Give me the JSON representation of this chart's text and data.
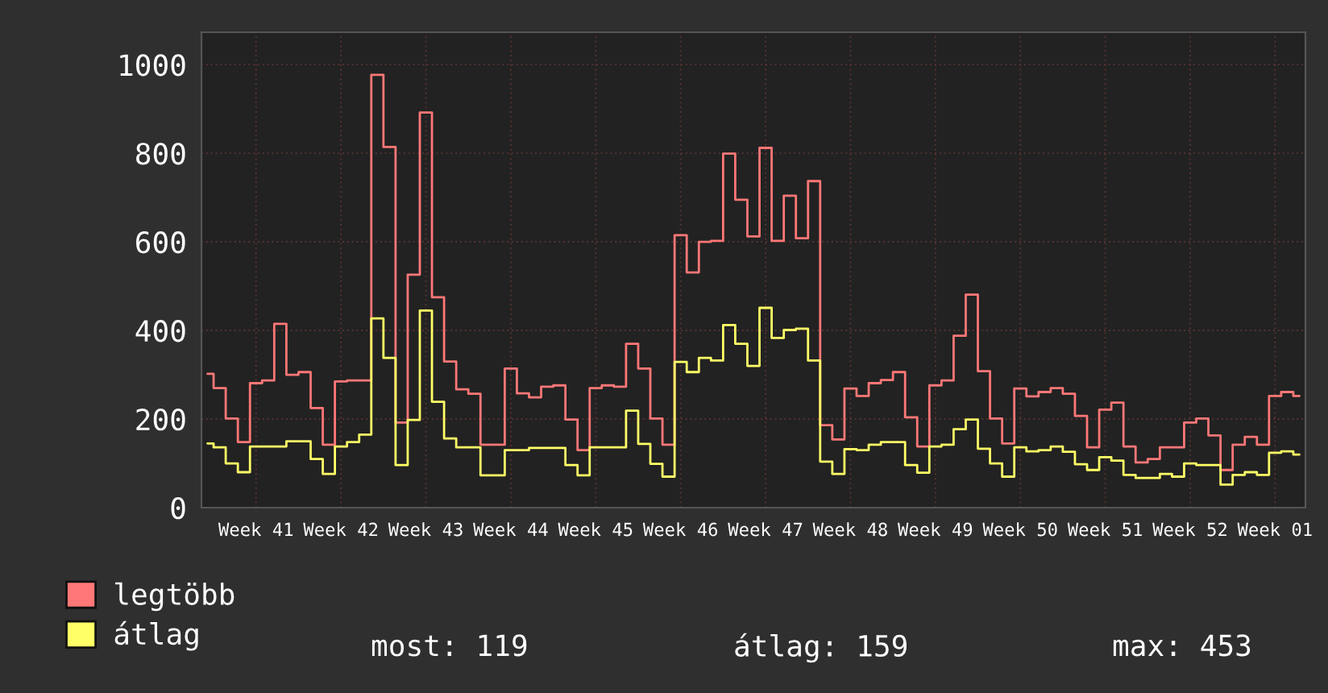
{
  "chart_data": {
    "type": "step",
    "categories": [
      null,
      null,
      null,
      null,
      "Week 41",
      null,
      null,
      null,
      null,
      null,
      null,
      "Week 42",
      null,
      null,
      null,
      null,
      null,
      null,
      "Week 43",
      null,
      null,
      null,
      null,
      null,
      null,
      "Week 44",
      null,
      null,
      null,
      null,
      null,
      null,
      "Week 45",
      null,
      null,
      null,
      null,
      null,
      null,
      "Week 46",
      null,
      null,
      null,
      null,
      null,
      null,
      "Week 47",
      null,
      null,
      null,
      null,
      null,
      null,
      "Week 48",
      null,
      null,
      null,
      null,
      null,
      null,
      "Week 49",
      null,
      null,
      null,
      null,
      null,
      null,
      "Week 50",
      null,
      null,
      null,
      null,
      null,
      null,
      "Week 51",
      null,
      null,
      null,
      null,
      null,
      null,
      "Week 52",
      null,
      null,
      null,
      null,
      null,
      null,
      "Week 01",
      null,
      null
    ],
    "series": [
      {
        "name": "legtöbb",
        "color": "#ff7777",
        "values": [
          302,
          270,
          201,
          148,
          281,
          287,
          415,
          300,
          306,
          225,
          142,
          285,
          287,
          287,
          977,
          814,
          192,
          526,
          892,
          475,
          330,
          267,
          257,
          142,
          142,
          314,
          258,
          249,
          273,
          276,
          199,
          130,
          270,
          276,
          273,
          370,
          314,
          201,
          142,
          615,
          531,
          600,
          602,
          799,
          695,
          612,
          812,
          602,
          704,
          608,
          737,
          186,
          154,
          269,
          252,
          281,
          288,
          306,
          204,
          138,
          276,
          287,
          388,
          481,
          308,
          201,
          145,
          269,
          251,
          261,
          270,
          257,
          207,
          136,
          221,
          237,
          138,
          102,
          110,
          136,
          136,
          192,
          201,
          163,
          85,
          142,
          160,
          142,
          252,
          261,
          252
        ]
      },
      {
        "name": "átlag",
        "color": "#ffff66",
        "values": [
          145,
          136,
          100,
          80,
          138,
          138,
          138,
          150,
          150,
          110,
          76,
          138,
          148,
          165,
          427,
          338,
          96,
          198,
          445,
          239,
          156,
          136,
          136,
          73,
          73,
          130,
          130,
          135,
          135,
          135,
          96,
          73,
          136,
          136,
          136,
          219,
          144,
          99,
          70,
          329,
          306,
          338,
          332,
          412,
          370,
          320,
          451,
          383,
          401,
          404,
          332,
          104,
          76,
          132,
          130,
          142,
          148,
          148,
          96,
          79,
          138,
          142,
          177,
          199,
          133,
          100,
          70,
          136,
          127,
          130,
          138,
          126,
          98,
          85,
          114,
          106,
          74,
          67,
          67,
          76,
          70,
          100,
          96,
          96,
          52,
          74,
          80,
          74,
          124,
          127,
          120
        ]
      }
    ],
    "ylim": [
      0,
      1073
    ],
    "yticks": [
      0,
      200,
      400,
      600,
      800,
      1000
    ],
    "grid": true,
    "legend": "bottom",
    "annotations": [
      "most: 119",
      "átlag: 159",
      "max: 453"
    ]
  }
}
